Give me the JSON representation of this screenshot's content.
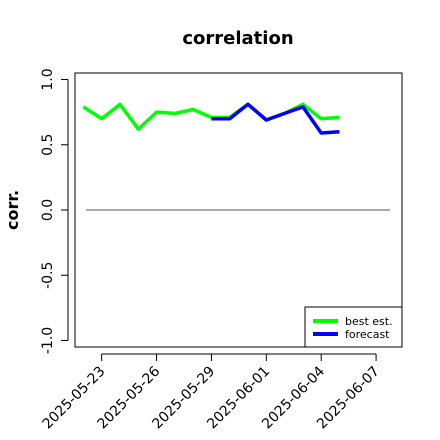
{
  "chart_data": {
    "type": "line",
    "title": "correlation",
    "xlabel": "",
    "ylabel": "corr.",
    "ylim": [
      -1.05,
      1.05
    ],
    "xlim": [
      "2025-05-21T13:00",
      "2025-06-08T10:00"
    ],
    "y_ticks": [
      -1.0,
      -0.5,
      0.0,
      0.5,
      1.0
    ],
    "y_tick_labels": [
      "-1.0",
      "-0.5",
      "0.0",
      "0.5",
      "1.0"
    ],
    "x_ticks": [
      "2025-05-23",
      "2025-05-26",
      "2025-05-29",
      "2025-06-01",
      "2025-06-04",
      "2025-06-07"
    ],
    "x_tick_labels": [
      "2025-05-23",
      "2025-05-26",
      "2025-05-29",
      "2025-06-01",
      "2025-06-04",
      "2025-06-07"
    ],
    "highlight_tick": "2025-05-29",
    "highlight_color": "#228b22",
    "reference_line": 0.0,
    "legend_position": "bottom-right",
    "series": [
      {
        "name": "best est.",
        "color": "#00ff00",
        "x": [
          "2025-05-22",
          "2025-05-23",
          "2025-05-24",
          "2025-05-25",
          "2025-05-26",
          "2025-05-27",
          "2025-05-28",
          "2025-05-29",
          "2025-05-30",
          "2025-05-31",
          "2025-06-01",
          "2025-06-02",
          "2025-06-03",
          "2025-06-04",
          "2025-06-05"
        ],
        "values": [
          0.79,
          0.7,
          0.81,
          0.62,
          0.75,
          0.74,
          0.77,
          0.71,
          0.71,
          0.81,
          0.69,
          0.74,
          0.81,
          0.7,
          0.71
        ]
      },
      {
        "name": "forecast",
        "color": "#0000ff",
        "x": [
          "2025-05-29",
          "2025-05-30",
          "2025-05-31",
          "2025-06-01",
          "2025-06-02",
          "2025-06-03",
          "2025-06-04",
          "2025-06-05"
        ],
        "values": [
          0.7,
          0.7,
          0.81,
          0.69,
          0.74,
          0.79,
          0.59,
          0.6
        ]
      }
    ]
  }
}
